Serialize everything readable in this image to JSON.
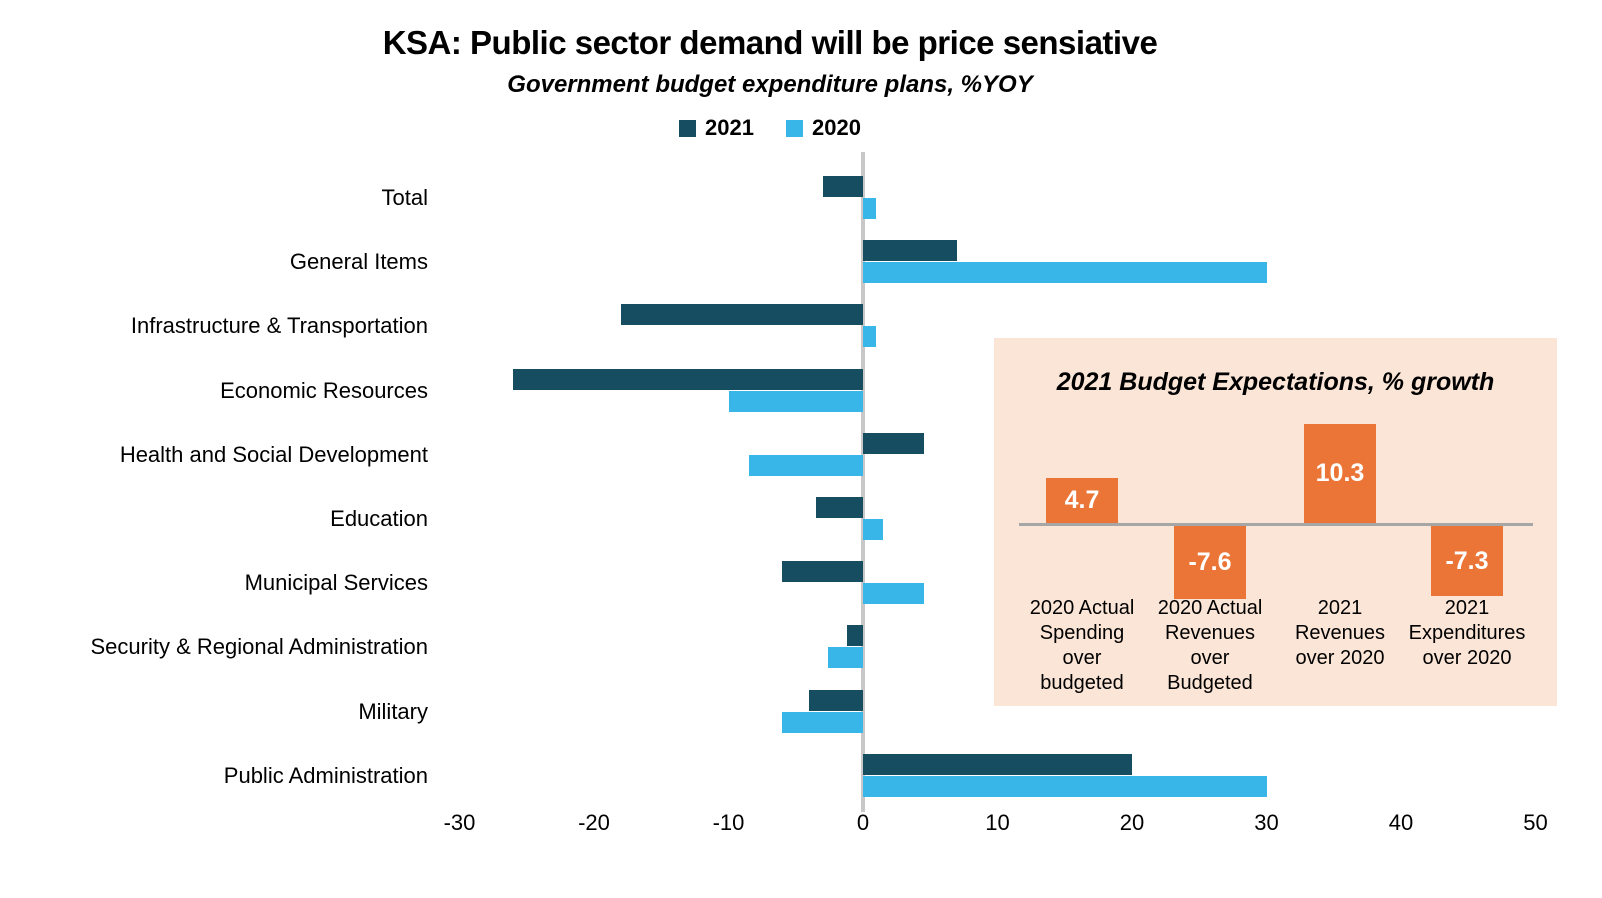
{
  "title": "KSA: Public sector demand will be price sensiative",
  "subtitle": "Government budget expenditure plans, %YOY",
  "legend": [
    {
      "label": "2021",
      "color": "#174D61"
    },
    {
      "label": "2020",
      "color": "#38B6E8"
    }
  ],
  "colors": {
    "bar_2021": "#174D61",
    "bar_2020": "#38B6E8",
    "inset_bar": "#EB7536",
    "inset_background": "#FBE5D6",
    "axis_line": "#C8C8C8",
    "inset_axis_line": "#A6A6A6",
    "text": "#000000"
  },
  "chart_data": [
    {
      "type": "bar",
      "orientation": "horizontal",
      "title": "Government budget expenditure plans, %YOY",
      "categories": [
        "Total",
        "General Items",
        "Infrastructure & Transportation",
        "Economic Resources",
        "Health and Social Development",
        "Education",
        "Municipal Services",
        "Security & Regional Administration",
        "Military",
        "Public Administration"
      ],
      "series": [
        {
          "name": "2021",
          "color": "#174D61",
          "values": [
            -3,
            7,
            -18,
            -26,
            4.5,
            -3.5,
            -6,
            -1.2,
            -4,
            20
          ]
        },
        {
          "name": "2020",
          "color": "#38B6E8",
          "values": [
            1,
            30,
            1,
            -10,
            -8.5,
            1.5,
            4.5,
            -2.6,
            -6,
            30
          ]
        }
      ],
      "xlim": [
        -30,
        50
      ],
      "xticks": [
        -30,
        -20,
        -10,
        0,
        10,
        20,
        30,
        40,
        50
      ],
      "grid": false,
      "legend_position": "top"
    },
    {
      "type": "bar",
      "orientation": "vertical",
      "title": "2021 Budget Expectations, % growth",
      "categories": [
        "2020 Actual Spending over budgeted",
        "2020 Actual Revenues over Budgeted",
        "2021 Revenues over 2020",
        "2021 Expenditures over 2020"
      ],
      "values": [
        4.7,
        -7.6,
        10.3,
        -7.3
      ],
      "data_labels": [
        "4.7",
        "-7.6",
        "10.3",
        "-7.3"
      ],
      "bar_color": "#EB7536",
      "background": "#FBE5D6",
      "ylim": [
        -10,
        12
      ]
    }
  ]
}
